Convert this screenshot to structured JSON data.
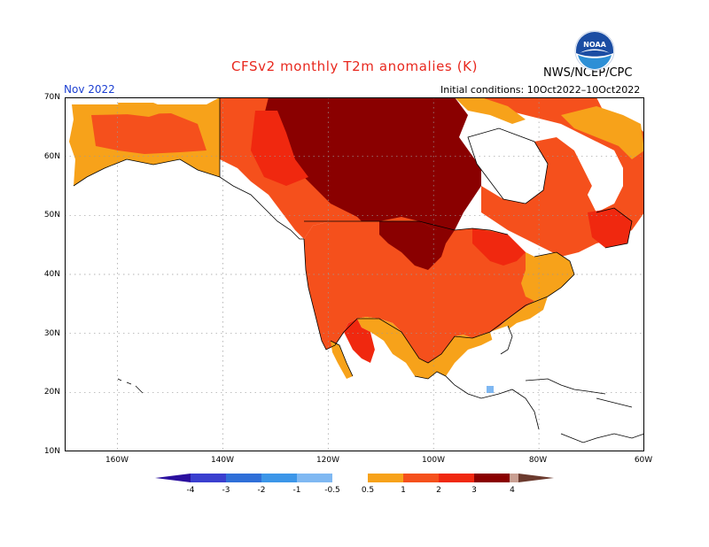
{
  "title": "CFSv2 monthly T2m anomalies (K)",
  "agency": "NWS/NCEP/CPC",
  "month": "Nov 2022",
  "initial_conditions": "Initial conditions: 10Oct2022–10Oct2022",
  "logo_text": "NOAA",
  "map": {
    "projection": "cylindrical equidistant",
    "lon_range": [
      "170W",
      "60W"
    ],
    "lat_range": [
      "10N",
      "70N"
    ],
    "grid": "dotted",
    "lat_labels": [
      "70N",
      "60N",
      "50N",
      "40N",
      "30N",
      "20N",
      "10N"
    ],
    "lon_labels": [
      "160W",
      "140W",
      "120W",
      "100W",
      "80W",
      "60W"
    ]
  },
  "colorbar": {
    "levels": [
      "-4",
      "-3",
      "-2",
      "-1",
      "-0.5",
      "0.5",
      "1",
      "2",
      "3",
      "4"
    ],
    "colors": {
      "lt_-4": "#2a0f9e",
      "-4_-3": "#3a3fcf",
      "-3_-2": "#2f6fd8",
      "-2_-1": "#3c96e8",
      "-1_-0.5": "#7fb8f2",
      "-0.5_0.5": "#ffffff",
      "0.5_1": "#f7a21a",
      "1_2": "#f5501c",
      "2_3": "#f0280f",
      "3_4": "#8a0000",
      "gt_4": "#c99f92",
      "extreme": "#6b3a2e"
    }
  },
  "anomaly_colors": {
    "weak_warm": "#f7a21a",
    "warm": "#f5501c",
    "warmer": "#f0280f",
    "hot": "#8a0000",
    "cool": "#7fb8f2"
  }
}
